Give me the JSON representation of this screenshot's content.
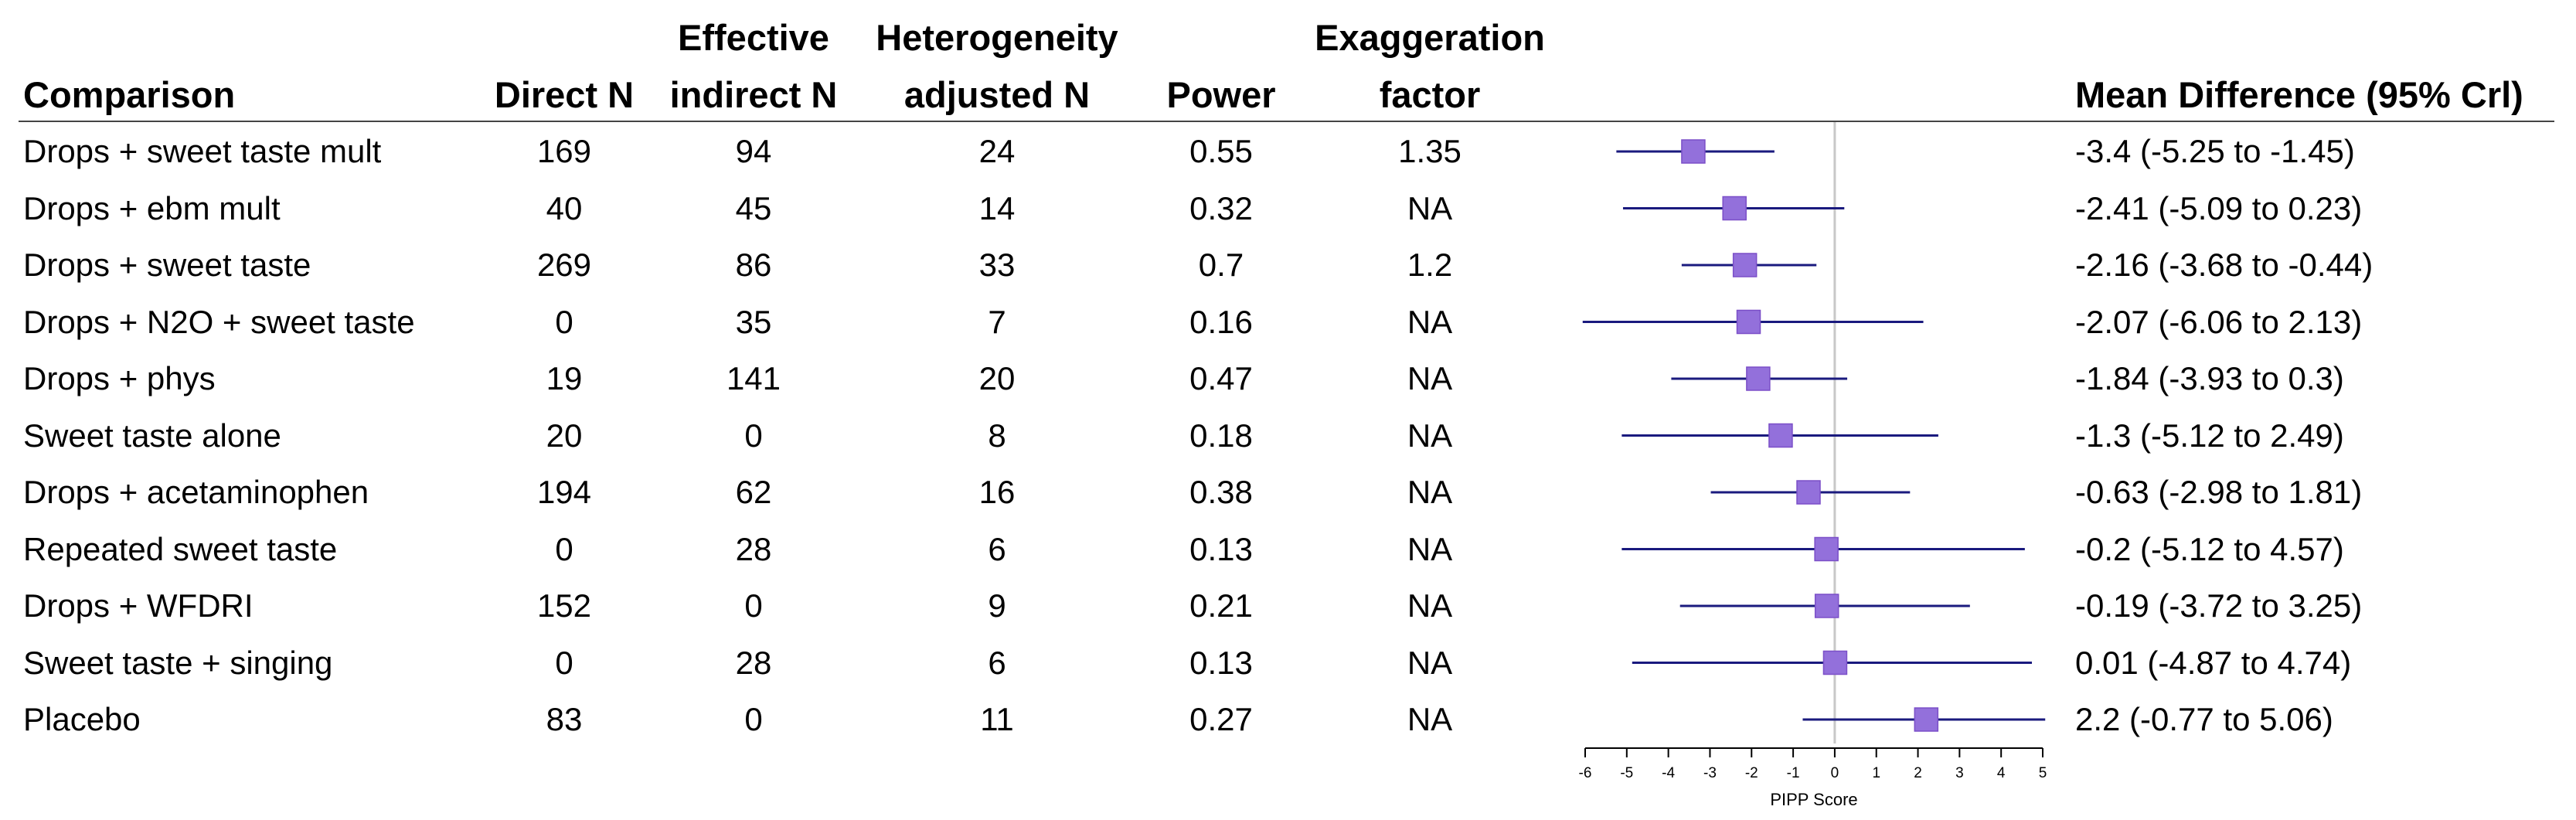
{
  "headers": {
    "comparison": "Comparison",
    "direct_n": "Direct N",
    "effective_indirect_n_line1": "Effective",
    "effective_indirect_n_line2": "indirect N",
    "heterogeneity_line1": "Heterogeneity",
    "heterogeneity_line2": "adjusted N",
    "power": "Power",
    "exaggeration_line1": "Exaggeration",
    "exaggeration_line2": "factor",
    "mean_difference": "Mean Difference (95% Crl)"
  },
  "rows": [
    {
      "comparison": "Drops + sweet taste mult",
      "direct_n": "169",
      "effective_indirect_n": "94",
      "heterogeneity_adjusted_n": "24",
      "power": "0.55",
      "exaggeration_factor": "1.35",
      "mean_difference_text": "-3.4 (-5.25 to -1.45)"
    },
    {
      "comparison": "Drops + ebm mult",
      "direct_n": "40",
      "effective_indirect_n": "45",
      "heterogeneity_adjusted_n": "14",
      "power": "0.32",
      "exaggeration_factor": "NA",
      "mean_difference_text": "-2.41 (-5.09 to 0.23)"
    },
    {
      "comparison": "Drops + sweet taste",
      "direct_n": "269",
      "effective_indirect_n": "86",
      "heterogeneity_adjusted_n": "33",
      "power": "0.7",
      "exaggeration_factor": "1.2",
      "mean_difference_text": "-2.16 (-3.68 to -0.44)"
    },
    {
      "comparison": "Drops + N2O + sweet taste",
      "direct_n": "0",
      "effective_indirect_n": "35",
      "heterogeneity_adjusted_n": "7",
      "power": "0.16",
      "exaggeration_factor": "NA",
      "mean_difference_text": "-2.07 (-6.06 to 2.13)"
    },
    {
      "comparison": "Drops + phys",
      "direct_n": "19",
      "effective_indirect_n": "141",
      "heterogeneity_adjusted_n": "20",
      "power": "0.47",
      "exaggeration_factor": "NA",
      "mean_difference_text": "-1.84 (-3.93 to 0.3)"
    },
    {
      "comparison": "Sweet taste alone",
      "direct_n": "20",
      "effective_indirect_n": "0",
      "heterogeneity_adjusted_n": "8",
      "power": "0.18",
      "exaggeration_factor": "NA",
      "mean_difference_text": "-1.3 (-5.12 to 2.49)"
    },
    {
      "comparison": "Drops + acetaminophen",
      "direct_n": "194",
      "effective_indirect_n": "62",
      "heterogeneity_adjusted_n": "16",
      "power": "0.38",
      "exaggeration_factor": "NA",
      "mean_difference_text": "-0.63 (-2.98 to 1.81)"
    },
    {
      "comparison": "Repeated sweet taste",
      "direct_n": "0",
      "effective_indirect_n": "28",
      "heterogeneity_adjusted_n": "6",
      "power": "0.13",
      "exaggeration_factor": "NA",
      "mean_difference_text": "-0.2 (-5.12 to 4.57)"
    },
    {
      "comparison": "Drops + WFDRI",
      "direct_n": "152",
      "effective_indirect_n": "0",
      "heterogeneity_adjusted_n": "9",
      "power": "0.21",
      "exaggeration_factor": "NA",
      "mean_difference_text": "-0.19 (-3.72 to 3.25)"
    },
    {
      "comparison": "Sweet taste + singing",
      "direct_n": "0",
      "effective_indirect_n": "28",
      "heterogeneity_adjusted_n": "6",
      "power": "0.13",
      "exaggeration_factor": "NA",
      "mean_difference_text": "0.01 (-4.87 to 4.74)"
    },
    {
      "comparison": "Placebo",
      "direct_n": "83",
      "effective_indirect_n": "0",
      "heterogeneity_adjusted_n": "11",
      "power": "0.27",
      "exaggeration_factor": "NA",
      "mean_difference_text": "2.2 (-0.77 to 5.06)"
    }
  ],
  "chart_data": {
    "type": "forest",
    "xlabel": "PIPP Score",
    "xlim": [
      -6,
      5
    ],
    "xticks": [
      -6,
      -5,
      -4,
      -3,
      -2,
      -1,
      0,
      1,
      2,
      3,
      4,
      5
    ],
    "reference_line": 0,
    "marker_color": "#9370DB",
    "marker_border": "#7B4FC8",
    "ci_line_color": "#1A1A7E",
    "categories": [
      "Drops + sweet taste mult",
      "Drops + ebm mult",
      "Drops + sweet taste",
      "Drops + N2O + sweet taste",
      "Drops + phys",
      "Sweet taste alone",
      "Drops + acetaminophen",
      "Repeated sweet taste",
      "Drops + WFDRI",
      "Sweet taste + singing",
      "Placebo"
    ],
    "estimates": [
      -3.4,
      -2.41,
      -2.16,
      -2.07,
      -1.84,
      -1.3,
      -0.63,
      -0.2,
      -0.19,
      0.01,
      2.2
    ],
    "lower": [
      -5.25,
      -5.09,
      -3.68,
      -6.06,
      -3.93,
      -5.12,
      -2.98,
      -5.12,
      -3.72,
      -4.87,
      -0.77
    ],
    "upper": [
      -1.45,
      0.23,
      -0.44,
      2.13,
      0.3,
      2.49,
      1.81,
      4.57,
      3.25,
      4.74,
      5.06
    ]
  }
}
